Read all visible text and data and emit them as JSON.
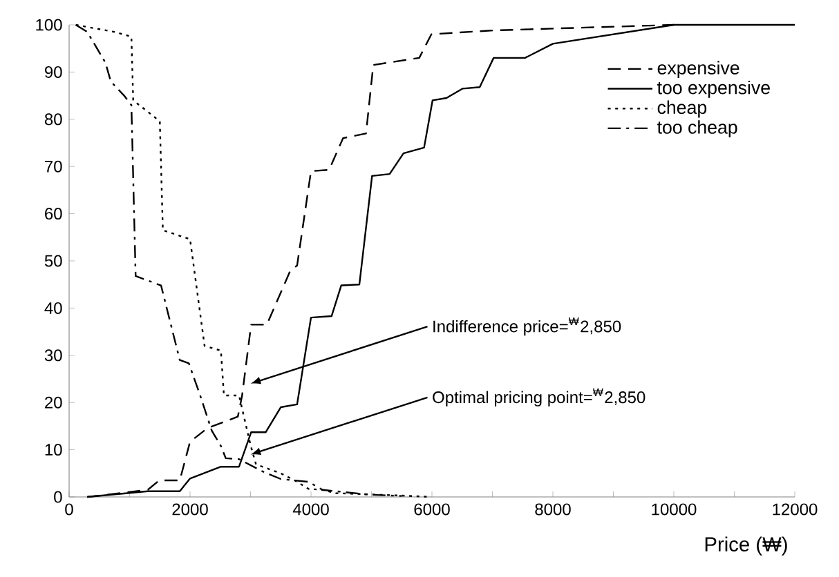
{
  "chart_data": {
    "type": "line",
    "xlabel": "Price (₩)",
    "xlim": [
      0,
      12000
    ],
    "xticks": [
      0,
      2000,
      4000,
      6000,
      8000,
      10000,
      12000
    ],
    "ylim": [
      0,
      100
    ],
    "yticks": [
      0,
      10,
      20,
      30,
      40,
      50,
      60,
      70,
      80,
      90,
      100
    ],
    "grid": false,
    "legend": "top right",
    "marker": "none",
    "series": [
      {
        "name": "expensive",
        "color": "#000000",
        "line_style": "dashed",
        "x": [
          300,
          1300,
          1490,
          1830,
          2000,
          2290,
          2790,
          2860,
          3010,
          3270,
          3660,
          3770,
          4000,
          4300,
          4530,
          4910,
          5030,
          5790,
          5990,
          6970,
          10000
        ],
        "values": [
          0,
          1.5,
          3.5,
          3.5,
          11.7,
          14.6,
          17,
          21.4,
          36.5,
          36.5,
          48,
          49,
          69,
          69.3,
          76,
          77,
          91.5,
          93,
          98,
          98.8,
          100
        ]
      },
      {
        "name": "too expensive",
        "color": "#000000",
        "line_style": "solid",
        "x": [
          300,
          1300,
          1830,
          2000,
          2510,
          2810,
          3010,
          3250,
          3500,
          3770,
          4000,
          4340,
          4500,
          4800,
          5010,
          5300,
          5530,
          5870,
          6010,
          6240,
          6510,
          6790,
          7020,
          7540,
          8000,
          10000,
          12000
        ],
        "values": [
          0,
          1.2,
          1.2,
          3.9,
          6.4,
          6.4,
          13.7,
          13.7,
          19,
          19.6,
          38,
          38.3,
          44.8,
          45,
          68,
          68.4,
          72.8,
          74,
          84,
          84.5,
          86.5,
          86.8,
          93,
          93,
          96,
          100,
          100
        ]
      },
      {
        "name": "cheap",
        "color": "#000000",
        "line_style": "dotted",
        "x": [
          110,
          750,
          1030,
          1060,
          1410,
          1500,
          1550,
          2000,
          2240,
          2510,
          2560,
          2810,
          3000,
          3090,
          3500,
          3730,
          3960,
          4190,
          4410,
          5490,
          5990
        ],
        "values": [
          100,
          98.5,
          97.5,
          84,
          80.5,
          79.5,
          56.5,
          54.6,
          32,
          31,
          21.5,
          21.5,
          11,
          6.9,
          5,
          3.5,
          1.7,
          1.5,
          0.8,
          0.3,
          0
        ]
      },
      {
        "name": "too cheap",
        "color": "#000000",
        "line_style": "dashdot",
        "x": [
          110,
          300,
          600,
          690,
          910,
          1030,
          1100,
          1520,
          1830,
          1980,
          2170,
          2360,
          2510,
          2590,
          2810,
          3200,
          3500,
          3960,
          4190,
          4950,
          5500
        ],
        "values": [
          100,
          98.5,
          92,
          88,
          85,
          83,
          46.8,
          44.8,
          29,
          28.3,
          21.4,
          14,
          10.8,
          8.2,
          8,
          5.4,
          3.8,
          3.2,
          1.5,
          0.5,
          0.2
        ]
      }
    ],
    "annotations": [
      {
        "text": "Indifference price=$^{₩}$2,850",
        "x": 3000,
        "y": 24
      },
      {
        "text": "Optimal pricing point=$^{₩}$2,850",
        "x": 3000,
        "y": 9
      }
    ]
  }
}
